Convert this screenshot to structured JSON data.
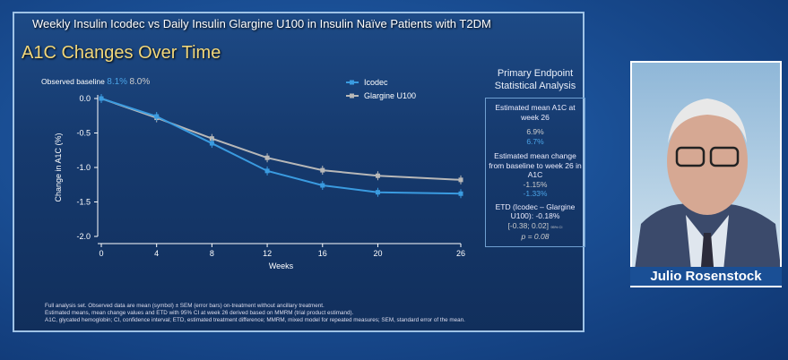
{
  "slide": {
    "supertitle": "Weekly Insulin Icodec vs Daily Insulin Glargine U100 in Insulin Naïve Patients with T2DM",
    "title": "A1C Changes Over Time",
    "baseline_label": "Observed baseline",
    "baseline_icodec": "8.1%",
    "baseline_glargine": "8.0%",
    "footnotes": [
      "Full analysis set. Observed data are mean (symbol) ± SEM (error bars) on-treatment without ancillary treatment.",
      "Estimated means, mean change values and ETD with 95% CI at week 26 derived based on MMRM (trial product estimand).",
      "A1C, glycated hemoglobin; CI, confidence interval; ETD, estimated treatment difference; MMRM, mixed model for repeated measures; SEM, standard error of the mean."
    ]
  },
  "chart_data": {
    "type": "line",
    "xlabel": "Weeks",
    "ylabel": "Change in A1C (%)",
    "x": [
      0,
      4,
      8,
      12,
      16,
      20,
      26
    ],
    "xticks": [
      "0",
      "4",
      "8",
      "12",
      "16",
      "20",
      "26"
    ],
    "yticks": [
      "0.0",
      "-0.5",
      "-1.0",
      "-1.5",
      "-2.0"
    ],
    "ylim": [
      -2.0,
      0.0
    ],
    "legend": "top-right",
    "series": [
      {
        "name": "Icodec",
        "color": "#3a9be0",
        "values": [
          0,
          -0.26,
          -0.65,
          -1.05,
          -1.26,
          -1.36,
          -1.38
        ]
      },
      {
        "name": "Glargine U100",
        "color": "#b8b8b8",
        "values": [
          0,
          -0.28,
          -0.58,
          -0.86,
          -1.04,
          -1.12,
          -1.18
        ]
      }
    ]
  },
  "panel": {
    "heading": "Primary Endpoint Statistical Analysis",
    "est_mean_label": "Estimated mean A1C at week 26",
    "est_glargine": "6.9%",
    "est_icodec": "6.7%",
    "change_label": "Estimated mean change from baseline to week 26 in A1C",
    "change_glargine": "-1.15%",
    "change_icodec": "-1.33%",
    "etd_label": "ETD (Icodec – Glargine U100): -0.18%",
    "ci": "[-0.38; 0.02]",
    "ci_note": "95% CI",
    "p": "p = 0.08"
  },
  "speaker": {
    "name": "Julio Rosenstock"
  }
}
